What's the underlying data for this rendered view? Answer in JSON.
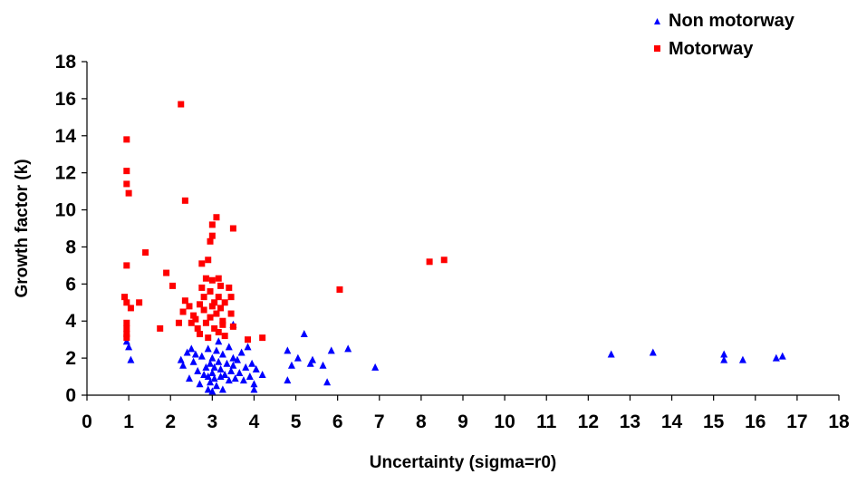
{
  "chart_data": {
    "type": "scatter",
    "title": "",
    "xlabel": "Uncertainty (sigma=r0)",
    "ylabel": "Growth factor (k)",
    "xlim": [
      0,
      18
    ],
    "ylim": [
      0,
      18
    ],
    "xticks": [
      0,
      1,
      2,
      3,
      4,
      5,
      6,
      7,
      8,
      9,
      10,
      11,
      12,
      13,
      14,
      15,
      16,
      17,
      18
    ],
    "yticks": [
      0,
      2,
      4,
      6,
      8,
      10,
      12,
      14,
      16,
      18
    ],
    "grid": false,
    "legend_position": "top-right",
    "series": [
      {
        "name": "Non motorway",
        "marker": "triangle",
        "color": "#0000ff",
        "points": [
          [
            0.95,
            2.9
          ],
          [
            1.0,
            2.6
          ],
          [
            1.05,
            1.9
          ],
          [
            2.25,
            1.9
          ],
          [
            2.3,
            1.6
          ],
          [
            2.4,
            2.3
          ],
          [
            2.45,
            0.9
          ],
          [
            2.5,
            2.5
          ],
          [
            2.55,
            1.8
          ],
          [
            2.6,
            2.2
          ],
          [
            2.65,
            1.3
          ],
          [
            2.7,
            0.6
          ],
          [
            2.75,
            2.1
          ],
          [
            2.8,
            1.1
          ],
          [
            2.85,
            1.5
          ],
          [
            2.9,
            0.3
          ],
          [
            2.9,
            1.0
          ],
          [
            2.9,
            2.5
          ],
          [
            2.95,
            0.7
          ],
          [
            2.95,
            1.7
          ],
          [
            3.0,
            0.2
          ],
          [
            3.0,
            1.2
          ],
          [
            3.0,
            2.0
          ],
          [
            3.05,
            0.9
          ],
          [
            3.05,
            1.5
          ],
          [
            3.1,
            2.4
          ],
          [
            3.1,
            0.5
          ],
          [
            3.15,
            1.8
          ],
          [
            3.15,
            2.9
          ],
          [
            3.2,
            1.0
          ],
          [
            3.2,
            1.4
          ],
          [
            3.25,
            0.3
          ],
          [
            3.25,
            2.2
          ],
          [
            3.3,
            1.1
          ],
          [
            3.35,
            1.7
          ],
          [
            3.4,
            0.8
          ],
          [
            3.4,
            2.6
          ],
          [
            3.45,
            1.3
          ],
          [
            3.5,
            2.0
          ],
          [
            3.5,
            1.6
          ],
          [
            3.55,
            0.9
          ],
          [
            3.6,
            1.9
          ],
          [
            3.65,
            1.2
          ],
          [
            3.7,
            2.3
          ],
          [
            3.75,
            0.8
          ],
          [
            3.8,
            1.5
          ],
          [
            3.85,
            2.6
          ],
          [
            3.9,
            1.0
          ],
          [
            3.95,
            1.7
          ],
          [
            4.0,
            0.3
          ],
          [
            4.0,
            0.6
          ],
          [
            4.05,
            1.4
          ],
          [
            4.2,
            1.1
          ],
          [
            3.5,
            3.8
          ],
          [
            4.8,
            2.4
          ],
          [
            4.8,
            0.8
          ],
          [
            4.9,
            1.6
          ],
          [
            5.05,
            2.0
          ],
          [
            5.2,
            3.3
          ],
          [
            5.35,
            1.7
          ],
          [
            5.4,
            1.9
          ],
          [
            5.65,
            1.6
          ],
          [
            5.75,
            0.7
          ],
          [
            5.85,
            2.4
          ],
          [
            6.25,
            2.5
          ],
          [
            6.9,
            1.5
          ],
          [
            12.55,
            2.2
          ],
          [
            13.55,
            2.3
          ],
          [
            15.25,
            2.2
          ],
          [
            15.25,
            1.9
          ],
          [
            15.7,
            1.9
          ],
          [
            16.5,
            2.0
          ],
          [
            16.65,
            2.1
          ]
        ]
      },
      {
        "name": "Motorway",
        "marker": "square",
        "color": "#ff0000",
        "points": [
          [
            0.95,
            13.8
          ],
          [
            0.95,
            12.1
          ],
          [
            0.95,
            11.4
          ],
          [
            1.0,
            10.9
          ],
          [
            0.95,
            7.0
          ],
          [
            0.9,
            5.3
          ],
          [
            0.95,
            5.0
          ],
          [
            1.05,
            4.7
          ],
          [
            0.95,
            3.9
          ],
          [
            0.95,
            3.6
          ],
          [
            0.95,
            3.3
          ],
          [
            0.95,
            3.1
          ],
          [
            1.25,
            5.0
          ],
          [
            1.4,
            7.7
          ],
          [
            1.75,
            3.6
          ],
          [
            1.9,
            6.6
          ],
          [
            2.05,
            5.9
          ],
          [
            2.2,
            3.9
          ],
          [
            2.25,
            15.7
          ],
          [
            2.3,
            4.5
          ],
          [
            2.35,
            10.5
          ],
          [
            2.35,
            5.1
          ],
          [
            2.45,
            4.8
          ],
          [
            2.5,
            3.9
          ],
          [
            2.55,
            4.3
          ],
          [
            2.6,
            4.1
          ],
          [
            2.65,
            3.6
          ],
          [
            2.7,
            4.9
          ],
          [
            2.7,
            3.3
          ],
          [
            2.75,
            7.1
          ],
          [
            2.75,
            5.8
          ],
          [
            2.8,
            5.3
          ],
          [
            2.8,
            4.6
          ],
          [
            2.85,
            6.3
          ],
          [
            2.85,
            3.9
          ],
          [
            2.9,
            7.3
          ],
          [
            2.9,
            3.1
          ],
          [
            2.95,
            4.2
          ],
          [
            2.95,
            5.6
          ],
          [
            2.95,
            8.3
          ],
          [
            3.0,
            9.2
          ],
          [
            3.0,
            8.6
          ],
          [
            3.0,
            6.2
          ],
          [
            3.0,
            4.8
          ],
          [
            3.05,
            5.0
          ],
          [
            3.05,
            3.6
          ],
          [
            3.1,
            9.6
          ],
          [
            3.1,
            4.4
          ],
          [
            3.15,
            6.3
          ],
          [
            3.15,
            5.3
          ],
          [
            3.15,
            3.4
          ],
          [
            3.2,
            5.9
          ],
          [
            3.2,
            4.7
          ],
          [
            3.25,
            3.8
          ],
          [
            3.25,
            4.0
          ],
          [
            3.3,
            5.0
          ],
          [
            3.3,
            3.2
          ],
          [
            3.4,
            5.8
          ],
          [
            3.45,
            5.3
          ],
          [
            3.45,
            4.4
          ],
          [
            3.5,
            9.0
          ],
          [
            3.5,
            3.7
          ],
          [
            3.85,
            3.0
          ],
          [
            4.2,
            3.1
          ],
          [
            6.05,
            5.7
          ],
          [
            8.2,
            7.2
          ],
          [
            8.55,
            7.3
          ]
        ]
      }
    ]
  }
}
